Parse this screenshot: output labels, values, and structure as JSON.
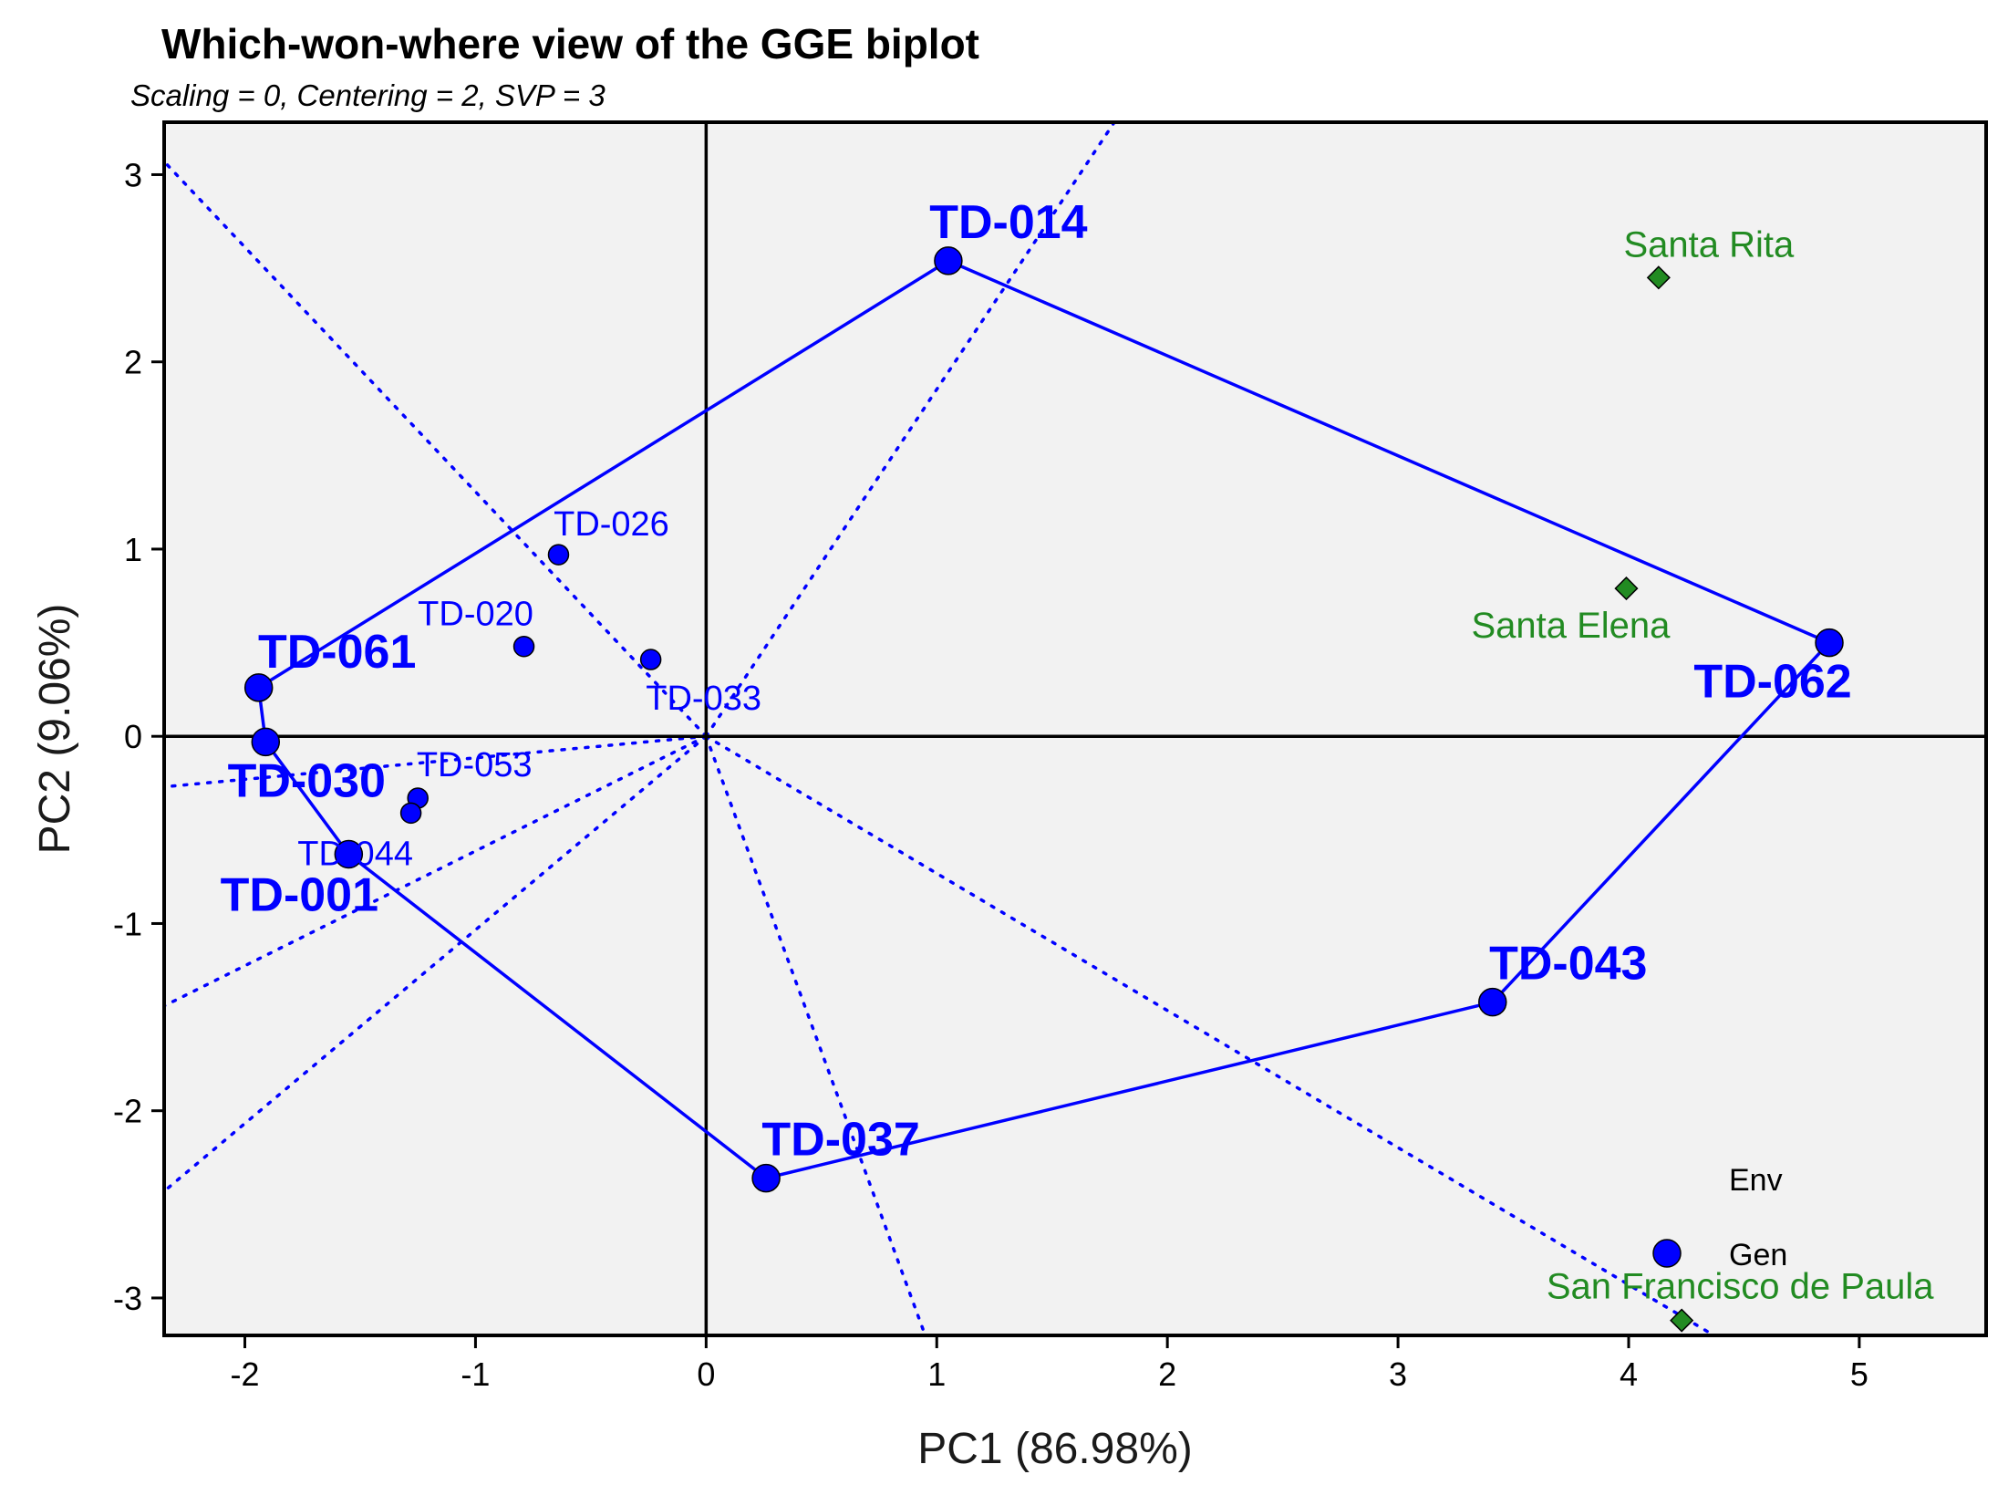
{
  "chart_data": {
    "type": "scatter",
    "title": "Which-won-where view of the GGE biplot",
    "subtitle": "Scaling = 0, Centering = 2, SVP = 3",
    "xlabel": "PC1 (86.98%)",
    "ylabel": "PC2 (9.06%)",
    "xlim": [
      -2.35,
      5.55
    ],
    "ylim": [
      -3.2,
      3.28
    ],
    "xticks": [
      -2,
      -1,
      0,
      1,
      2,
      3,
      4,
      5
    ],
    "yticks": [
      -3,
      -2,
      -1,
      0,
      1,
      2,
      3
    ],
    "grid": false,
    "colors": {
      "gen": "#0000ff",
      "env": "#228b22",
      "panel": "#f2f2f2"
    },
    "genotypes": [
      {
        "name": "TD-014",
        "x": 1.05,
        "y": 2.54,
        "vertex": true
      },
      {
        "name": "TD-062",
        "x": 4.87,
        "y": 0.5,
        "vertex": true
      },
      {
        "name": "TD-043",
        "x": 3.41,
        "y": -1.42,
        "vertex": true
      },
      {
        "name": "TD-037",
        "x": 0.26,
        "y": -2.36,
        "vertex": true
      },
      {
        "name": "TD-001",
        "x": -1.55,
        "y": -0.63,
        "vertex": true
      },
      {
        "name": "TD-030",
        "x": -1.91,
        "y": -0.03,
        "vertex": true
      },
      {
        "name": "TD-061",
        "x": -1.94,
        "y": 0.26,
        "vertex": true
      },
      {
        "name": "TD-026",
        "x": -0.64,
        "y": 0.97,
        "vertex": false
      },
      {
        "name": "TD-020",
        "x": -0.79,
        "y": 0.48,
        "vertex": false
      },
      {
        "name": "TD-033",
        "x": -0.24,
        "y": 0.41,
        "vertex": false
      },
      {
        "name": "TD-053",
        "x": -1.25,
        "y": -0.33,
        "vertex": false
      },
      {
        "name": "TD-044",
        "x": -1.28,
        "y": -0.41,
        "vertex": false
      }
    ],
    "hull_order": [
      "TD-014",
      "TD-062",
      "TD-043",
      "TD-037",
      "TD-001",
      "TD-030",
      "TD-061"
    ],
    "environments": [
      {
        "name": "Santa Rita",
        "x": 4.13,
        "y": 2.45
      },
      {
        "name": "Santa Elena",
        "x": 3.99,
        "y": 0.79
      },
      {
        "name": "San Francisco de Paula",
        "x": 4.23,
        "y": -3.12
      }
    ],
    "sector_rays": [
      {
        "x": 1.77,
        "y": 3.28
      },
      {
        "x": -2.35,
        "y": 3.07
      },
      {
        "x": 0.95,
        "y": -3.2
      },
      {
        "x": 4.37,
        "y": -3.2
      },
      {
        "x": -2.35,
        "y": -2.43
      },
      {
        "x": -2.35,
        "y": -1.44
      },
      {
        "x": -2.35,
        "y": -0.27
      }
    ],
    "legend": {
      "position": "bottom-right",
      "entries": [
        "Env",
        "Gen"
      ]
    }
  }
}
